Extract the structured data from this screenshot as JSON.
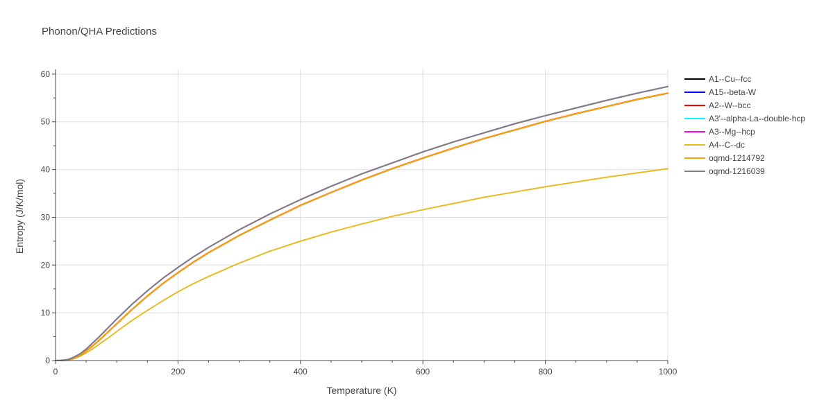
{
  "chart_data": {
    "type": "line",
    "title": "Phonon/QHA Predictions",
    "xlabel": "Temperature (K)",
    "ylabel": "Entropy (J/K/mol)",
    "xlim": [
      0,
      1000
    ],
    "ylim": [
      0,
      61
    ],
    "x_ticks": [
      0,
      200,
      400,
      600,
      800,
      1000
    ],
    "y_ticks": [
      0,
      10,
      20,
      30,
      40,
      50,
      60
    ],
    "grid": true,
    "legend_position": "right",
    "x": [
      0,
      10,
      20,
      30,
      40,
      50,
      60,
      70,
      80,
      90,
      100,
      125,
      150,
      175,
      200,
      225,
      250,
      300,
      350,
      400,
      450,
      500,
      550,
      600,
      650,
      700,
      750,
      800,
      850,
      900,
      950,
      1000
    ],
    "series": [
      {
        "name": "A1--Cu--fcc",
        "color": "#000000",
        "values": [
          0,
          0.02,
          0.15,
          0.5,
          1.1,
          2.0,
          3.0,
          4.1,
          5.3,
          6.5,
          7.7,
          10.7,
          13.5,
          16.1,
          18.4,
          20.6,
          22.6,
          26.2,
          29.4,
          32.5,
          35.2,
          37.8,
          40.2,
          42.4,
          44.5,
          46.5,
          48.3,
          50.1,
          51.7,
          53.2,
          54.7,
          56.0
        ]
      },
      {
        "name": "A15--beta-W",
        "color": "#0000ff",
        "values": [
          0,
          0.02,
          0.15,
          0.5,
          1.1,
          2.0,
          3.0,
          4.1,
          5.3,
          6.5,
          7.7,
          10.7,
          13.5,
          16.1,
          18.4,
          20.6,
          22.6,
          26.2,
          29.4,
          32.5,
          35.2,
          37.8,
          40.2,
          42.4,
          44.5,
          46.5,
          48.3,
          50.1,
          51.7,
          53.2,
          54.7,
          56.0
        ]
      },
      {
        "name": "A2--W--bcc",
        "color": "#ff0000",
        "values": [
          0,
          0.02,
          0.15,
          0.5,
          1.1,
          2.0,
          3.0,
          4.1,
          5.3,
          6.5,
          7.7,
          10.7,
          13.5,
          16.1,
          18.4,
          20.6,
          22.6,
          26.2,
          29.4,
          32.5,
          35.2,
          37.8,
          40.2,
          42.4,
          44.5,
          46.5,
          48.3,
          50.1,
          51.7,
          53.2,
          54.7,
          56.0
        ]
      },
      {
        "name": "A3'--alpha-La--double-hcp",
        "color": "#00ffff",
        "values": [
          0,
          0.03,
          0.2,
          0.7,
          1.4,
          2.4,
          3.6,
          4.8,
          6.1,
          7.4,
          8.7,
          11.8,
          14.6,
          17.2,
          19.5,
          21.7,
          23.7,
          27.4,
          30.7,
          33.7,
          36.5,
          39.1,
          41.4,
          43.7,
          45.8,
          47.7,
          49.6,
          51.3,
          52.9,
          54.5,
          56.0,
          57.4
        ]
      },
      {
        "name": "A3--Mg--hcp",
        "color": "#ff00ff",
        "values": [
          0,
          0.03,
          0.2,
          0.7,
          1.4,
          2.4,
          3.6,
          4.8,
          6.1,
          7.4,
          8.7,
          11.8,
          14.6,
          17.2,
          19.5,
          21.7,
          23.7,
          27.4,
          30.7,
          33.7,
          36.5,
          39.1,
          41.4,
          43.7,
          45.8,
          47.7,
          49.6,
          51.3,
          52.9,
          54.5,
          56.0,
          57.4
        ]
      },
      {
        "name": "A4--C--dc",
        "color": "#e6bc21",
        "values": [
          0,
          0.02,
          0.12,
          0.4,
          0.9,
          1.6,
          2.4,
          3.3,
          4.2,
          5.1,
          6.1,
          8.4,
          10.5,
          12.5,
          14.4,
          16.1,
          17.6,
          20.4,
          22.9,
          25.0,
          26.9,
          28.6,
          30.2,
          31.6,
          32.9,
          34.2,
          35.3,
          36.4,
          37.4,
          38.4,
          39.3,
          40.2
        ]
      },
      {
        "name": "oqmd-1214792",
        "color": "#ffa500",
        "values": [
          0,
          0.02,
          0.15,
          0.5,
          1.1,
          2.0,
          3.0,
          4.1,
          5.3,
          6.5,
          7.7,
          10.7,
          13.5,
          16.1,
          18.4,
          20.6,
          22.6,
          26.2,
          29.4,
          32.5,
          35.2,
          37.8,
          40.2,
          42.4,
          44.5,
          46.5,
          48.3,
          50.1,
          51.7,
          53.2,
          54.7,
          56.0
        ]
      },
      {
        "name": "oqmd-1216039",
        "color": "#808080",
        "values": [
          0,
          0.03,
          0.2,
          0.7,
          1.4,
          2.4,
          3.6,
          4.8,
          6.1,
          7.4,
          8.7,
          11.8,
          14.6,
          17.2,
          19.5,
          21.7,
          23.7,
          27.4,
          30.7,
          33.7,
          36.5,
          39.1,
          41.4,
          43.7,
          45.8,
          47.7,
          49.6,
          51.3,
          52.9,
          54.5,
          56.0,
          57.4
        ]
      }
    ]
  }
}
